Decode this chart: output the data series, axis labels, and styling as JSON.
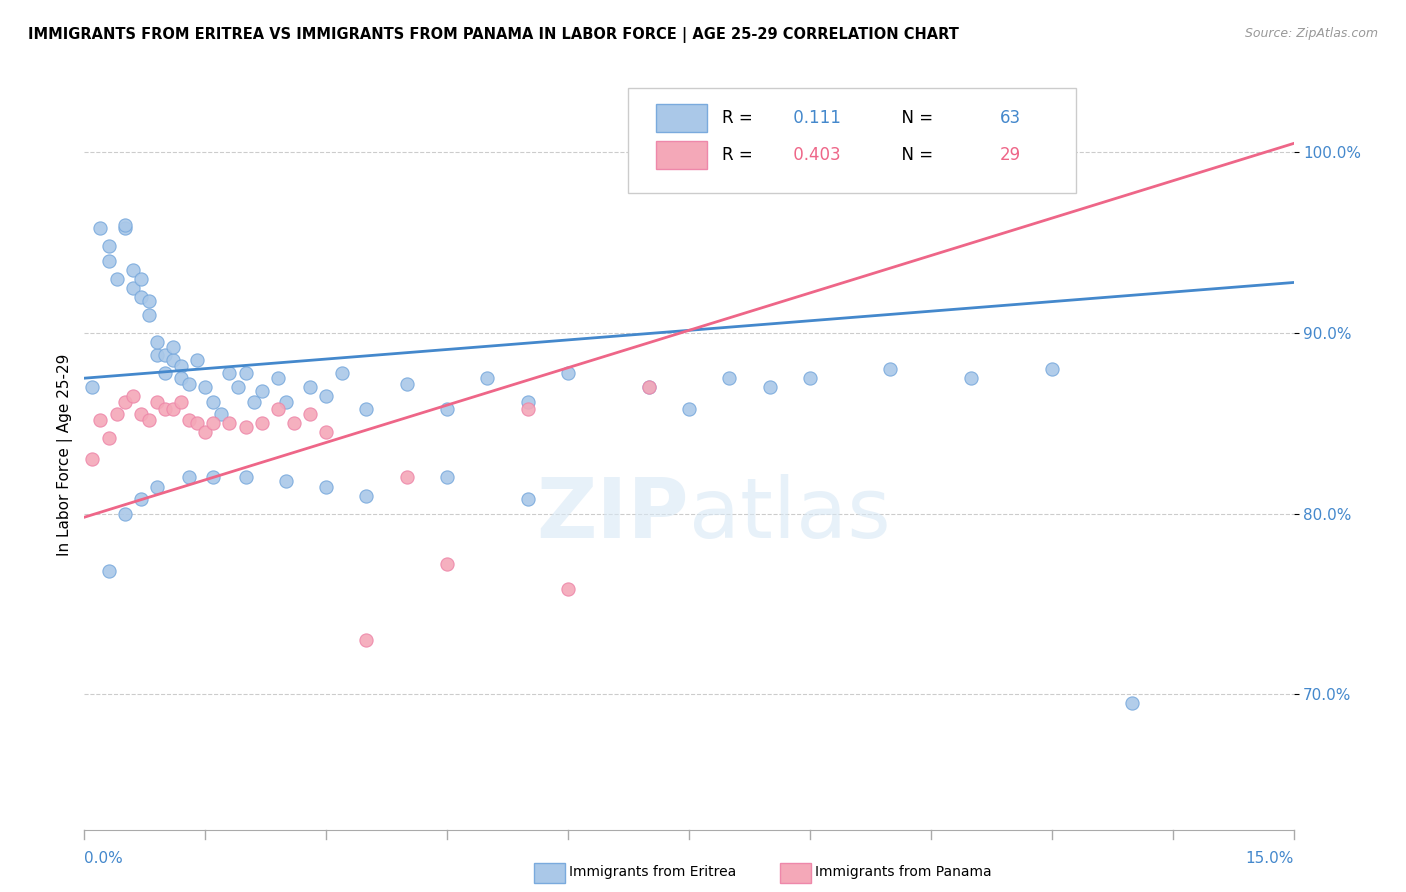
{
  "title": "IMMIGRANTS FROM ERITREA VS IMMIGRANTS FROM PANAMA IN LABOR FORCE | AGE 25-29 CORRELATION CHART",
  "source": "Source: ZipAtlas.com",
  "ylabel": "In Labor Force | Age 25-29",
  "yticks": [
    0.7,
    0.8,
    0.9,
    1.0
  ],
  "ytick_labels": [
    "70.0%",
    "80.0%",
    "90.0%",
    "100.0%"
  ],
  "xmin": 0.0,
  "xmax": 0.15,
  "ymin": 0.625,
  "ymax": 1.04,
  "r1": 0.111,
  "n1": 63,
  "r2": 0.403,
  "n2": 29,
  "color_eritrea": "#aac8e8",
  "color_panama": "#f4a8b8",
  "edge_color_eritrea": "#7aaadd",
  "edge_color_panama": "#ee88aa",
  "line_color_eritrea": "#4488cc",
  "line_color_panama": "#ee6688",
  "tick_color": "#4488cc",
  "grid_color": "#cccccc",
  "eritrea_x": [
    0.001,
    0.002,
    0.003,
    0.003,
    0.004,
    0.005,
    0.005,
    0.006,
    0.006,
    0.007,
    0.007,
    0.008,
    0.008,
    0.009,
    0.009,
    0.01,
    0.01,
    0.011,
    0.011,
    0.012,
    0.012,
    0.013,
    0.014,
    0.015,
    0.016,
    0.017,
    0.018,
    0.019,
    0.02,
    0.021,
    0.022,
    0.024,
    0.025,
    0.028,
    0.03,
    0.032,
    0.035,
    0.04,
    0.045,
    0.05,
    0.055,
    0.06,
    0.07,
    0.075,
    0.08,
    0.085,
    0.09,
    0.1,
    0.11,
    0.12,
    0.13,
    0.003,
    0.005,
    0.007,
    0.009,
    0.013,
    0.016,
    0.02,
    0.025,
    0.03,
    0.035,
    0.045,
    0.055
  ],
  "eritrea_y": [
    0.87,
    0.958,
    0.948,
    0.94,
    0.93,
    0.958,
    0.96,
    0.925,
    0.935,
    0.92,
    0.93,
    0.91,
    0.918,
    0.888,
    0.895,
    0.888,
    0.878,
    0.885,
    0.892,
    0.882,
    0.875,
    0.872,
    0.885,
    0.87,
    0.862,
    0.855,
    0.878,
    0.87,
    0.878,
    0.862,
    0.868,
    0.875,
    0.862,
    0.87,
    0.865,
    0.878,
    0.858,
    0.872,
    0.858,
    0.875,
    0.862,
    0.878,
    0.87,
    0.858,
    0.875,
    0.87,
    0.875,
    0.88,
    0.875,
    0.88,
    0.695,
    0.768,
    0.8,
    0.808,
    0.815,
    0.82,
    0.82,
    0.82,
    0.818,
    0.815,
    0.81,
    0.82,
    0.808
  ],
  "panama_x": [
    0.001,
    0.002,
    0.003,
    0.004,
    0.005,
    0.006,
    0.007,
    0.008,
    0.009,
    0.01,
    0.011,
    0.012,
    0.013,
    0.014,
    0.015,
    0.016,
    0.018,
    0.02,
    0.022,
    0.024,
    0.026,
    0.028,
    0.03,
    0.035,
    0.04,
    0.045,
    0.055,
    0.06,
    0.07
  ],
  "panama_y": [
    0.83,
    0.852,
    0.842,
    0.855,
    0.862,
    0.865,
    0.855,
    0.852,
    0.862,
    0.858,
    0.858,
    0.862,
    0.852,
    0.85,
    0.845,
    0.85,
    0.85,
    0.848,
    0.85,
    0.858,
    0.85,
    0.855,
    0.845,
    0.73,
    0.82,
    0.772,
    0.858,
    0.758,
    0.87
  ]
}
